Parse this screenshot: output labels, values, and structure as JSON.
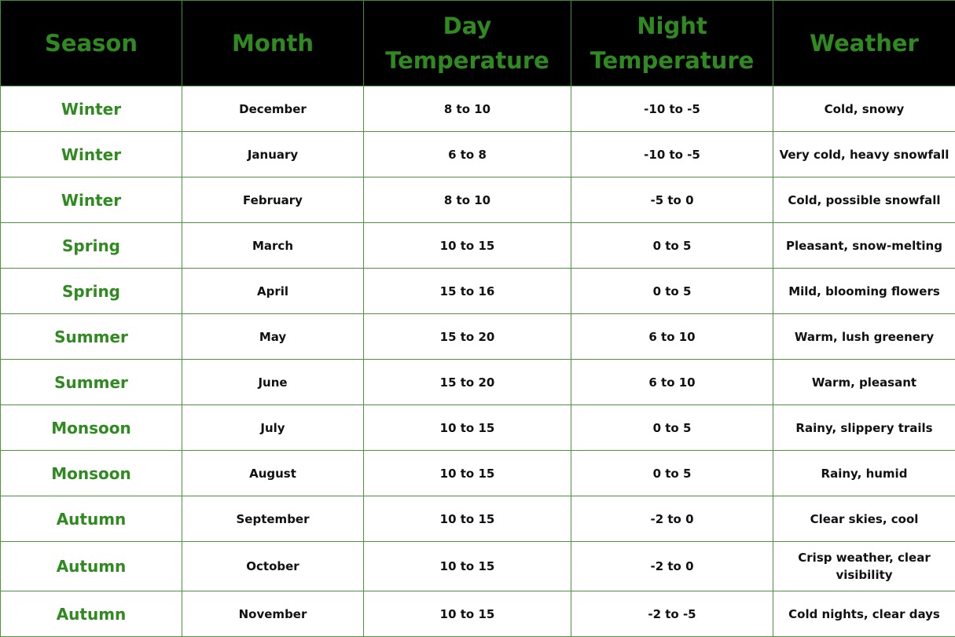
{
  "headers": [
    "Season",
    "Month",
    "Day Temperature",
    "Night Temperature",
    "Weather"
  ],
  "header_lines": {
    "day": [
      "Day",
      "Temperature"
    ],
    "night": [
      "Night",
      "Temperature"
    ]
  },
  "colors": {
    "accent_green": "#2f8a1f",
    "header_bg": "#000000"
  },
  "rows": [
    [
      "Winter",
      "December",
      "8 to 10",
      "-10 to -5",
      "Cold, snowy"
    ],
    [
      "Winter",
      "January",
      "6 to 8",
      "-10 to -5",
      "Very cold, heavy snowfall"
    ],
    [
      "Winter",
      "February",
      "8 to 10",
      "-5 to 0",
      "Cold, possible snowfall"
    ],
    [
      "Spring",
      "March",
      "10 to 15",
      "0 to 5",
      "Pleasant, snow-melting"
    ],
    [
      "Spring",
      "April",
      "15 to 16",
      "0 to 5",
      "Mild, blooming flowers"
    ],
    [
      "Summer",
      "May",
      "15 to 20",
      "6 to 10",
      "Warm, lush greenery"
    ],
    [
      "Summer",
      "June",
      "15 to 20",
      "6 to 10",
      "Warm, pleasant"
    ],
    [
      "Monsoon",
      "July",
      "10 to 15",
      "0 to 5",
      "Rainy, slippery trails"
    ],
    [
      "Monsoon",
      "August",
      "10 to 15",
      "0 to 5",
      "Rainy, humid"
    ],
    [
      "Autumn",
      "September",
      "10 to 15",
      "-2 to 0",
      "Clear skies, cool"
    ],
    [
      "Autumn",
      "October",
      "10 to 15",
      "-2 to 0",
      "Crisp weather, clear visibility"
    ],
    [
      "Autumn",
      "November",
      "10 to 15",
      "-2 to -5",
      "Cold nights, clear days"
    ]
  ]
}
